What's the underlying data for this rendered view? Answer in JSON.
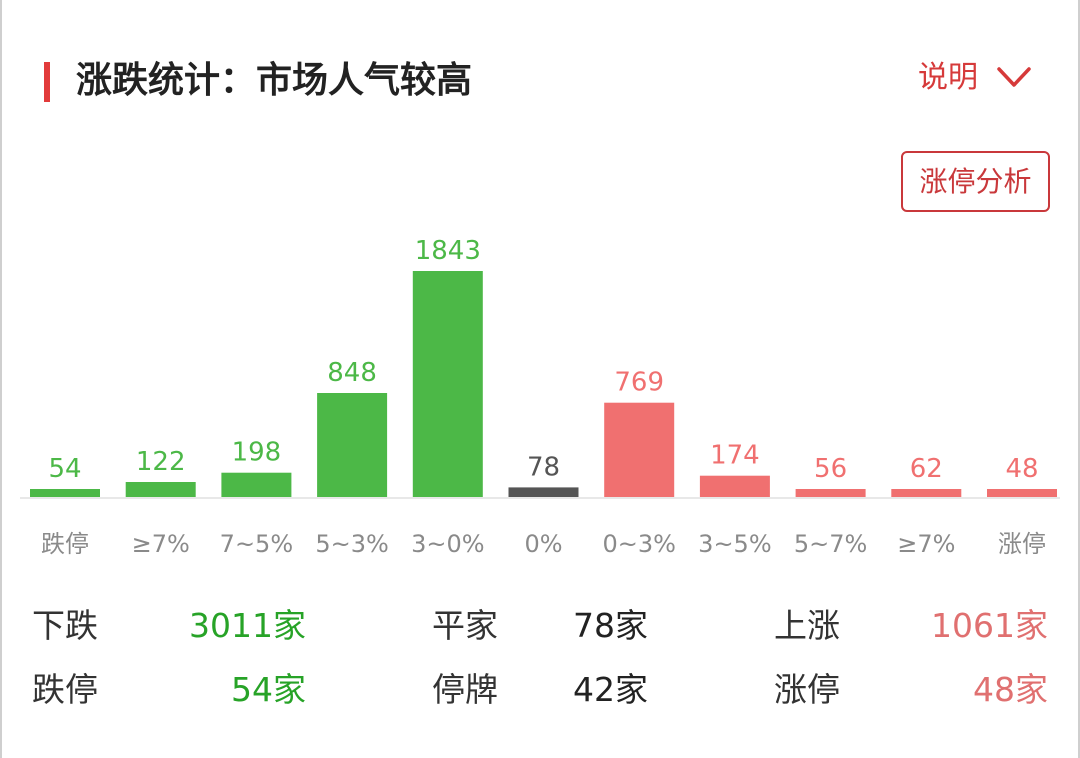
{
  "header": {
    "title": "涨跌统计：市场人气较高",
    "help_label": "说明",
    "limit_button": "涨停分析"
  },
  "colors": {
    "down": "#4cb847",
    "flat": "#555555",
    "up": "#f07070",
    "down_text": "#27a327",
    "up_text": "#e07070",
    "accent": "#e23b3b"
  },
  "chart_data": {
    "type": "bar",
    "categories": [
      "跌停",
      "≥7%",
      "7~5%",
      "5~3%",
      "3~0%",
      "0%",
      "0~3%",
      "3~5%",
      "5~7%",
      "≥7%",
      "涨停"
    ],
    "values": [
      54,
      122,
      198,
      848,
      1843,
      78,
      769,
      174,
      56,
      62,
      48
    ],
    "groups": [
      "down",
      "down",
      "down",
      "down",
      "down",
      "flat",
      "up",
      "up",
      "up",
      "up",
      "up"
    ],
    "title": "涨跌统计：市场人气较高",
    "xlabel": "",
    "ylabel": "",
    "ylim": [
      0,
      1843
    ],
    "grid": false,
    "data_labels": true
  },
  "stats": {
    "down": {
      "label": "下跌",
      "value": "3011家"
    },
    "flat": {
      "label": "平家",
      "value": "78家"
    },
    "up": {
      "label": "上涨",
      "value": "1061家"
    },
    "limit_down": {
      "label": "跌停",
      "value": "54家"
    },
    "suspended": {
      "label": "停牌",
      "value": "42家"
    },
    "limit_up": {
      "label": "涨停",
      "value": "48家"
    }
  }
}
